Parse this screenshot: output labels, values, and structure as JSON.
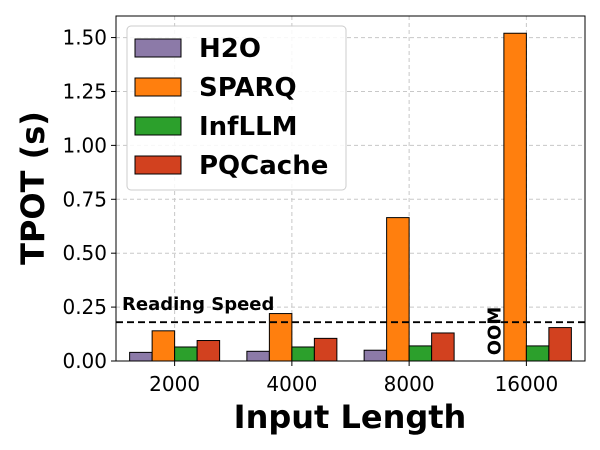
{
  "chart_data": {
    "type": "bar",
    "title": "",
    "xlabel": "Input Length",
    "ylabel": "TPOT (s)",
    "categories": [
      "2000",
      "4000",
      "8000",
      "16000"
    ],
    "ylim": [
      0,
      1.6
    ],
    "yticks": [
      "0.00",
      "0.25",
      "0.50",
      "0.75",
      "1.00",
      "1.25",
      "1.50"
    ],
    "grid": true,
    "legend_position": "top-left",
    "series": [
      {
        "name": "H2O",
        "color": "#8c7aa8",
        "values": [
          0.04,
          0.045,
          0.05,
          null
        ]
      },
      {
        "name": "SPARQ",
        "color": "#ff7f0e",
        "values": [
          0.14,
          0.22,
          0.665,
          1.52
        ]
      },
      {
        "name": "InfLLM",
        "color": "#2ca02c",
        "values": [
          0.065,
          0.065,
          0.07,
          0.07
        ]
      },
      {
        "name": "PQCache",
        "color": "#d2411f",
        "values": [
          0.095,
          0.105,
          0.13,
          0.155
        ]
      }
    ],
    "reference_line": {
      "label": "Reading Speed",
      "value": 0.18
    },
    "annotations": [
      {
        "text": "OOM",
        "category": "16000",
        "series": "H2O"
      }
    ]
  }
}
